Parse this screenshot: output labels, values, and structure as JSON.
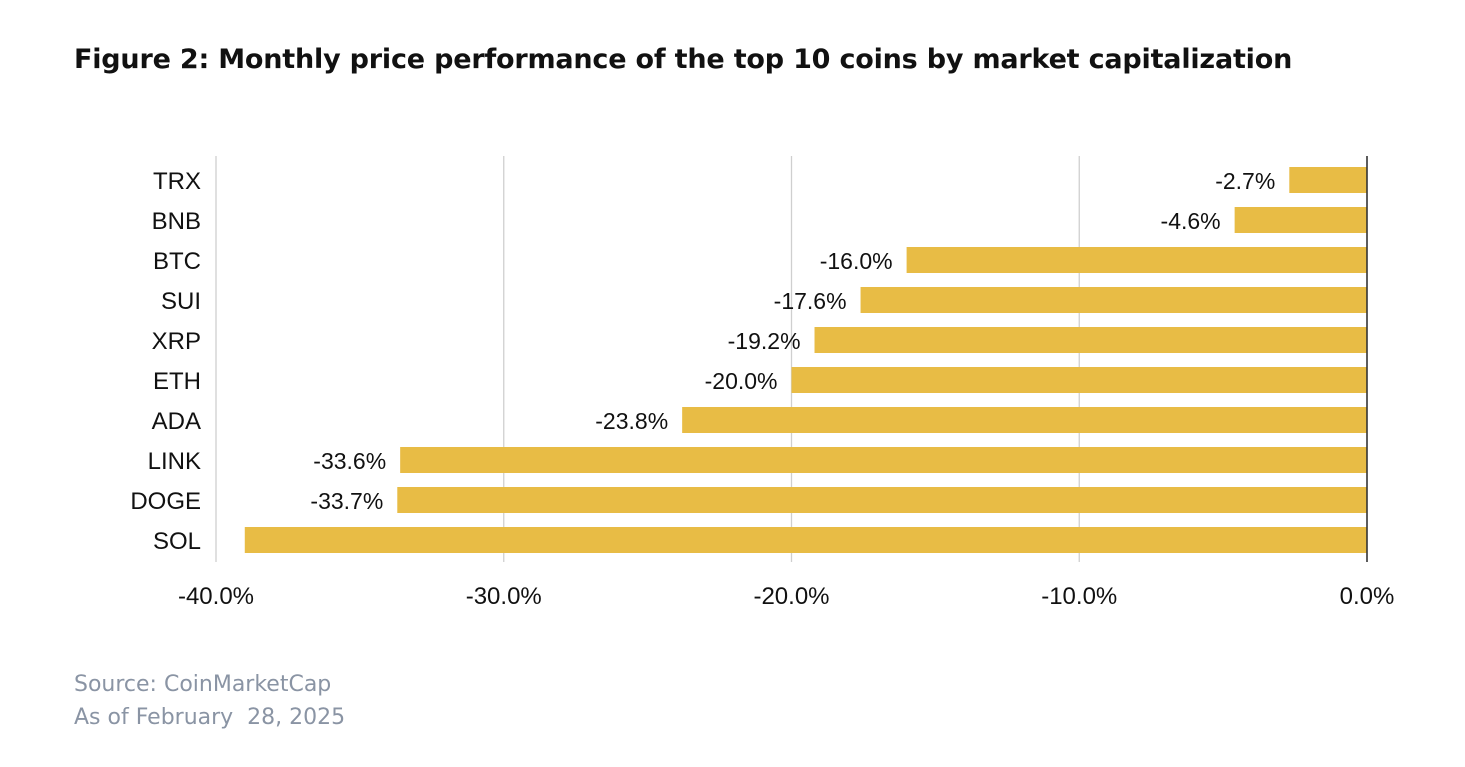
{
  "chart_data": {
    "type": "bar",
    "orientation": "horizontal",
    "title": "Figure 2: Monthly price performance of the top 10 coins by market capitalization",
    "categories": [
      "TRX",
      "BNB",
      "BTC",
      "SUI",
      "XRP",
      "ETH",
      "ADA",
      "LINK",
      "DOGE",
      "SOL"
    ],
    "values": [
      -2.7,
      -4.6,
      -16.0,
      -17.6,
      -19.2,
      -20.0,
      -23.8,
      -33.6,
      -33.7,
      -39.0
    ],
    "data_labels": [
      "-2.7%",
      "-4.6%",
      "-16.0%",
      "-17.6%",
      "-19.2%",
      "-20.0%",
      "-23.8%",
      "-33.6%",
      "-33.7%",
      ""
    ],
    "xlim": [
      -40,
      0
    ],
    "xticks": [
      -40,
      -30,
      -20,
      -10,
      0
    ],
    "xtick_labels": [
      "-40.0%",
      "-30.0%",
      "-20.0%",
      "-10.0%",
      "0.0%"
    ],
    "xlabel": "",
    "ylabel": "",
    "grid": true,
    "bar_color": "#e8bc45"
  },
  "footer": {
    "source": "Source: CoinMarketCap",
    "as_of": "As of February  28, 2025"
  }
}
